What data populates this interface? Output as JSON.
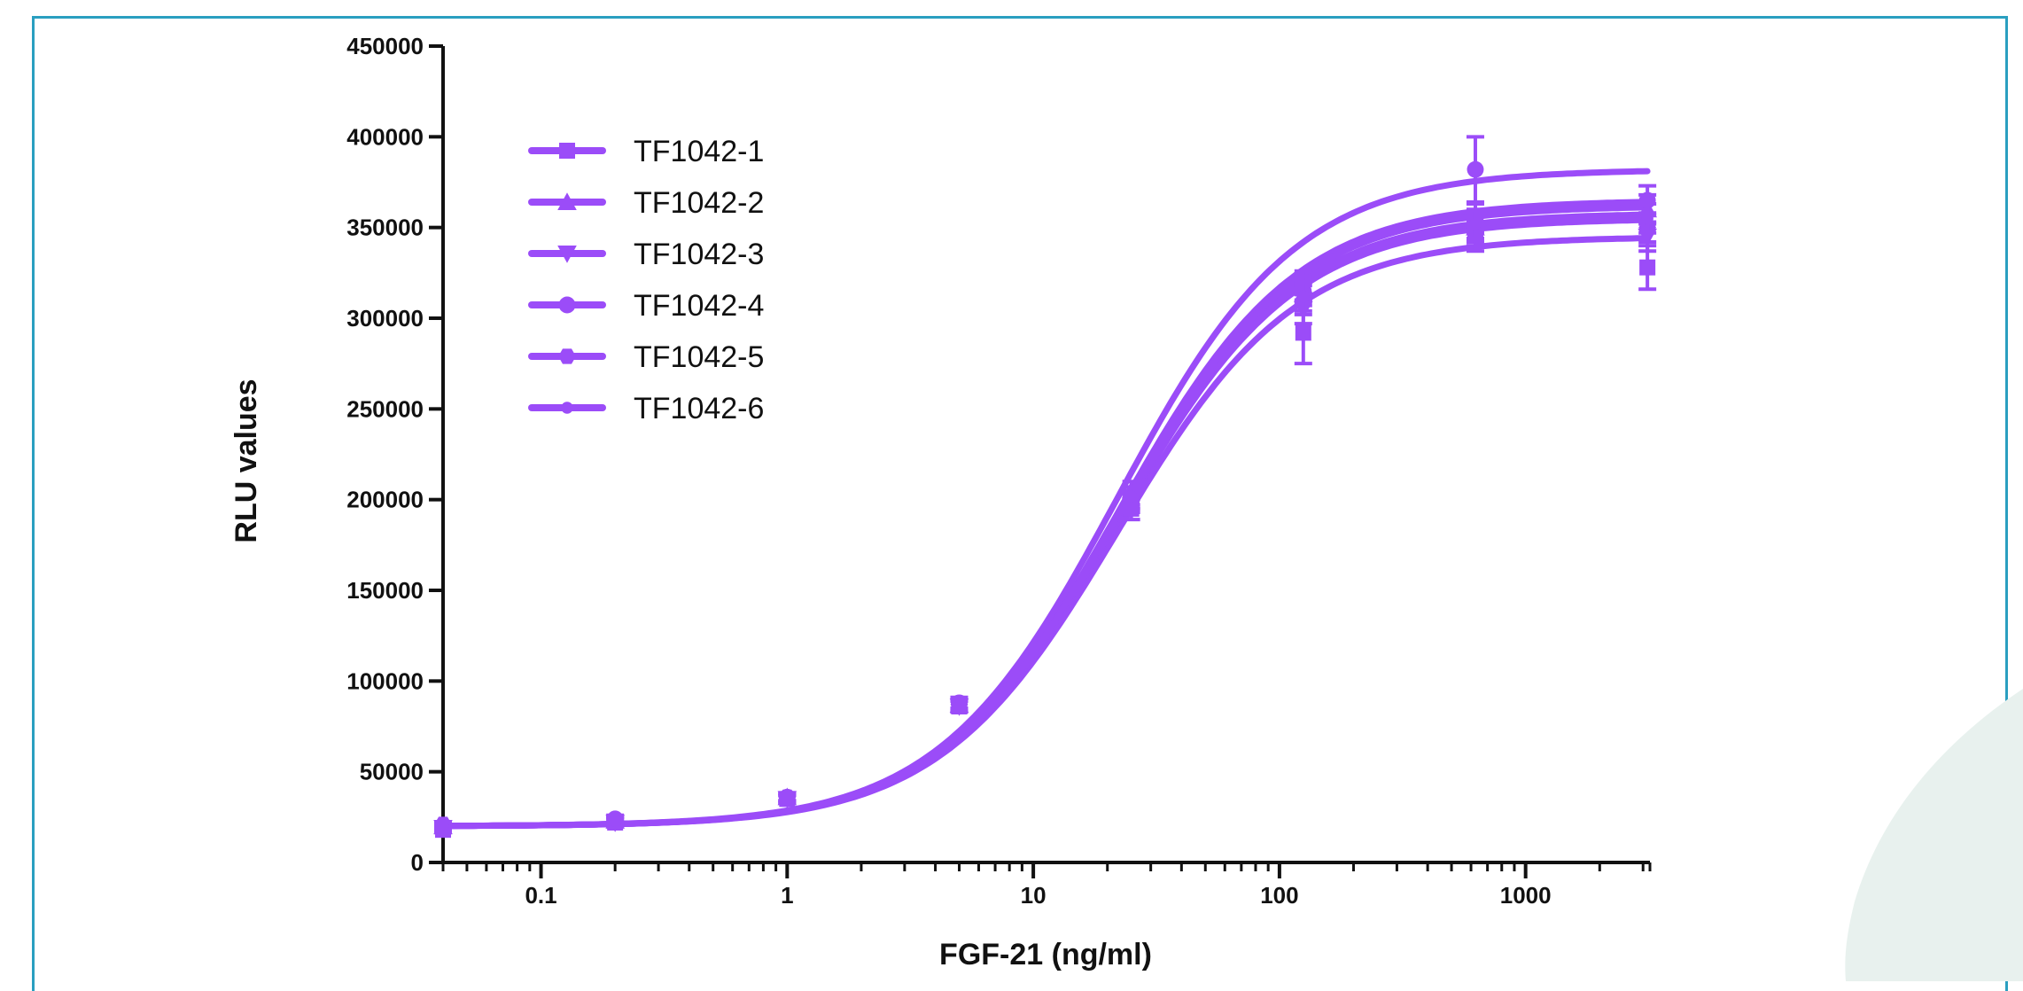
{
  "colors": {
    "series": "#9b4cf8",
    "axis": "#111111",
    "frame": "#2a9fc0",
    "decoration": "#e8f1ee"
  },
  "chart_data": {
    "type": "line",
    "xlabel": "FGF-21 (ng/ml)",
    "ylabel": "RLU values",
    "x_scale": "log",
    "xlim": [
      0.04,
      3200
    ],
    "ylim": [
      0,
      450000
    ],
    "x_ticks": [
      0.1,
      1,
      10,
      100,
      1000
    ],
    "x_tick_labels": [
      "0.1",
      "1",
      "10",
      "100",
      "1000"
    ],
    "y_ticks": [
      0,
      50000,
      100000,
      150000,
      200000,
      250000,
      300000,
      350000,
      400000,
      450000
    ],
    "y_tick_labels": [
      "0",
      "50000",
      "100000",
      "150000",
      "200000",
      "250000",
      "300000",
      "350000",
      "400000",
      "450000"
    ],
    "grid": false,
    "legend_position": "top-left",
    "x": [
      0.04,
      0.2,
      1,
      5,
      25,
      125,
      625,
      3125
    ],
    "series": [
      {
        "name": "TF1042-1",
        "marker": "square",
        "values": [
          18000,
          22000,
          35000,
          86000,
          195000,
          292000,
          348000,
          328000
        ],
        "errors": [
          1500,
          2000,
          2000,
          3000,
          6000,
          17000,
          8000,
          12000
        ],
        "fit": {
          "bottom": 20000,
          "top": 345000,
          "ec50": 22,
          "hill": 1.2
        }
      },
      {
        "name": "TF1042-2",
        "marker": "triangle-up",
        "values": [
          20000,
          23000,
          36000,
          87000,
          205000,
          318000,
          350000,
          360000
        ],
        "errors": [
          1500,
          2000,
          2000,
          3000,
          5000,
          8000,
          8000,
          8000
        ],
        "fit": {
          "bottom": 20000,
          "top": 365000,
          "ec50": 22,
          "hill": 1.2
        }
      },
      {
        "name": "TF1042-3",
        "marker": "triangle-down",
        "values": [
          19000,
          22000,
          35000,
          86000,
          200000,
          305000,
          345000,
          345000
        ],
        "errors": [
          1500,
          2000,
          2000,
          3000,
          5000,
          8000,
          8000,
          8000
        ],
        "fit": {
          "bottom": 20000,
          "top": 355000,
          "ec50": 22,
          "hill": 1.2
        }
      },
      {
        "name": "TF1042-4",
        "marker": "circle",
        "values": [
          20000,
          24000,
          36000,
          88000,
          200000,
          315000,
          382000,
          365000
        ],
        "errors": [
          1500,
          2000,
          2000,
          3000,
          5000,
          8000,
          18000,
          8000
        ],
        "fit": {
          "bottom": 20000,
          "top": 382000,
          "ec50": 22,
          "hill": 1.2
        }
      },
      {
        "name": "TF1042-5",
        "marker": "hexagon",
        "values": [
          21000,
          23000,
          36000,
          87000,
          198000,
          310000,
          355000,
          350000
        ],
        "errors": [
          1500,
          2000,
          2000,
          3000,
          5000,
          8000,
          8000,
          8000
        ],
        "fit": {
          "bottom": 20000,
          "top": 358000,
          "ec50": 22,
          "hill": 1.2
        }
      },
      {
        "name": "TF1042-6",
        "marker": "small-circle",
        "values": [
          20000,
          23000,
          35000,
          87000,
          202000,
          312000,
          352000,
          355000
        ],
        "errors": [
          1500,
          2000,
          2000,
          3000,
          5000,
          8000,
          8000,
          8000
        ],
        "fit": {
          "bottom": 20000,
          "top": 362000,
          "ec50": 22,
          "hill": 1.2
        }
      }
    ]
  }
}
